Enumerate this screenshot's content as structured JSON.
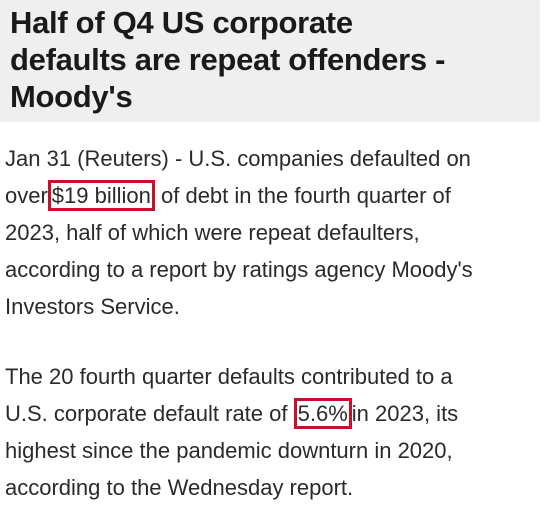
{
  "headline": {
    "lines": [
      "Half of Q4 US corporate",
      "defaults are repeat offenders -",
      "Moody's"
    ]
  },
  "paragraphs": [
    {
      "lines": [
        [
          "Jan 31 (Reuters) - U.S. companies defaulted on"
        ],
        [
          "over",
          "$19 billion",
          "of debt in the fourth quarter of"
        ],
        [
          "2023, half of which were repeat defaulters,"
        ],
        [
          "according to a report by ratings agency Moody's"
        ],
        [
          "Investors Service."
        ]
      ]
    },
    {
      "lines": [
        [
          "The 20 fourth quarter defaults contributed to a"
        ],
        [
          "U.S. corporate default rate of",
          "5.6%",
          "in 2023, its"
        ],
        [
          "highest since the pandemic downturn in 2020,"
        ],
        [
          "according to the Wednesday report."
        ]
      ]
    }
  ]
}
